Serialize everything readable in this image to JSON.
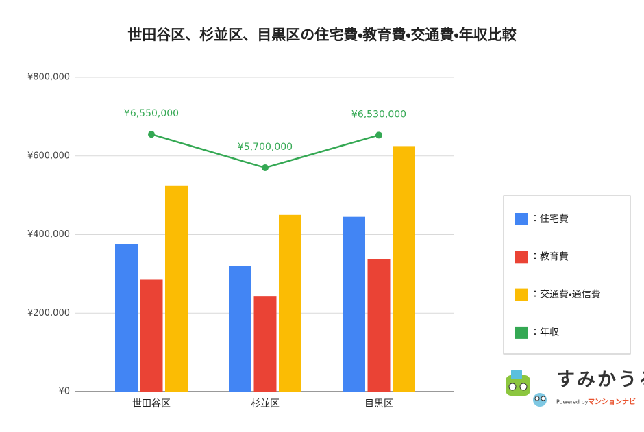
{
  "chart_data": {
    "type": "bar",
    "title": "世田谷区、杉並区、目黒区の住宅費・教育費・交通費・年収比較",
    "categories": [
      "世田谷区",
      "杉並区",
      "目黒区"
    ],
    "ylim": [
      0,
      800000
    ],
    "yticks": [
      {
        "value": 0,
        "label": "¥0"
      },
      {
        "value": 200000,
        "label": "¥200,000"
      },
      {
        "value": 400000,
        "label": "¥400,000"
      },
      {
        "value": 600000,
        "label": "¥600,000"
      },
      {
        "value": 800000,
        "label": "¥800,000"
      }
    ],
    "y2lim": [
      0,
      8000000
    ],
    "grid": true,
    "legend": "right",
    "series": [
      {
        "name": "：住宅費",
        "type": "bar",
        "color": "#4285f4",
        "values": [
          375000,
          320000,
          445000
        ]
      },
      {
        "name": "：教育費",
        "type": "bar",
        "color": "#ea4335",
        "values": [
          285000,
          242000,
          337000
        ]
      },
      {
        "name": "：交通費・通信費",
        "type": "bar",
        "color": "#fbbc04",
        "values": [
          525000,
          450000,
          625000
        ]
      },
      {
        "name": "：年収",
        "type": "line",
        "axis": "y2",
        "color": "#34a853",
        "values": [
          6550000,
          5700000,
          6530000
        ],
        "value_labels": [
          "¥6,550,000",
          "¥5,700,000",
          "¥6,530,000"
        ]
      }
    ]
  },
  "logo": {
    "text": "すみかうる",
    "powered_by": "Powered by",
    "brand": "マンションナビ"
  }
}
